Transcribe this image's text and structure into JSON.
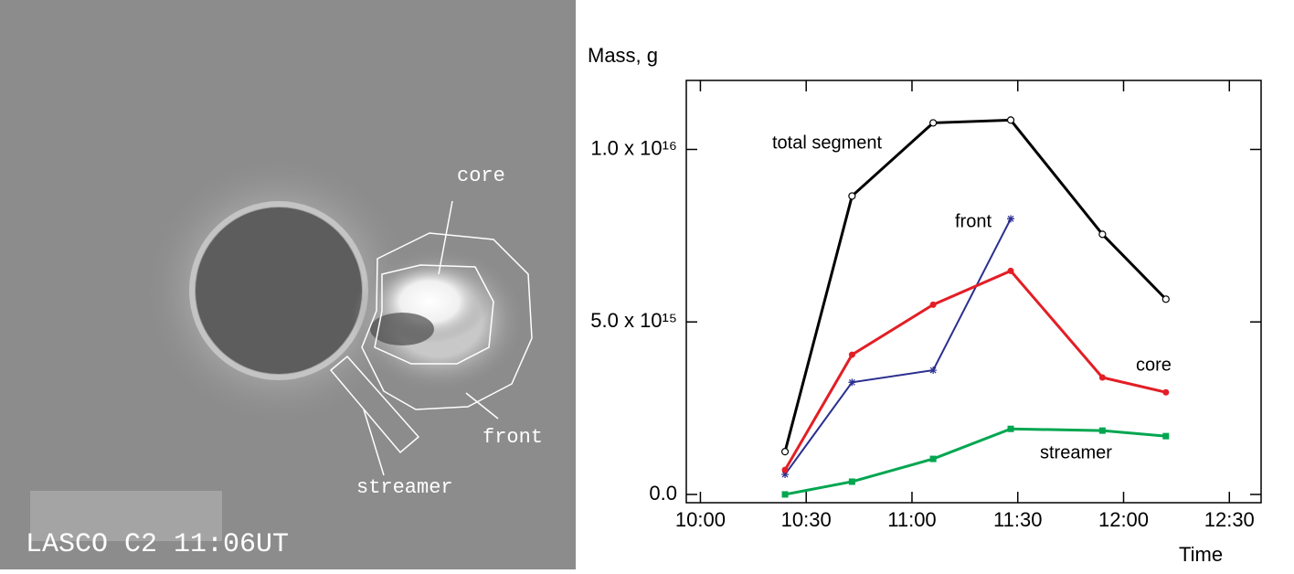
{
  "image": {
    "caption": "LASCO C2 11:06UT",
    "labels": [
      "core",
      "front",
      "streamer"
    ]
  },
  "chart_data": {
    "type": "line",
    "y_label": "Mass, g",
    "x_label": "Time",
    "x": [
      "10:24",
      "10:43",
      "11:06",
      "11:28",
      "11:54",
      "12:12"
    ],
    "xlim": [
      "09:56",
      "12:39"
    ],
    "xticks": [
      "10:00",
      "10:30",
      "11:00",
      "11:30",
      "12:00",
      "12:30"
    ],
    "ylim": [
      -240000000000000,
      12000000000000000
    ],
    "yticks": [
      {
        "value": 0,
        "label": "0.0"
      },
      {
        "value": 5000000000000000,
        "label": "5.0 x 10¹⁵"
      },
      {
        "value": 10000000000000000,
        "label": "1.0 x 10¹⁶"
      }
    ],
    "series": [
      {
        "name": "total segment",
        "color": "#000000",
        "marker": "open-circle",
        "values": [
          1240000000000000,
          8650000000000000,
          10770000000000000,
          10850000000000000,
          7540000000000000,
          5660000000000000
        ]
      },
      {
        "name": "front",
        "color": "#2b2f8f",
        "marker": "asterisk",
        "values": [
          580000000000000,
          3250000000000000,
          3600000000000000,
          7990000000000000,
          null,
          null
        ]
      },
      {
        "name": "core",
        "color": "#e31e25",
        "marker": "circle",
        "values": [
          710000000000000,
          4050000000000000,
          5500000000000000,
          6480000000000000,
          3390000000000000,
          2960000000000000
        ]
      },
      {
        "name": "streamer",
        "color": "#00a650",
        "marker": "square",
        "values": [
          0,
          370000000000000,
          1030000000000000,
          1900000000000000,
          1850000000000000,
          1690000000000000
        ]
      }
    ]
  }
}
